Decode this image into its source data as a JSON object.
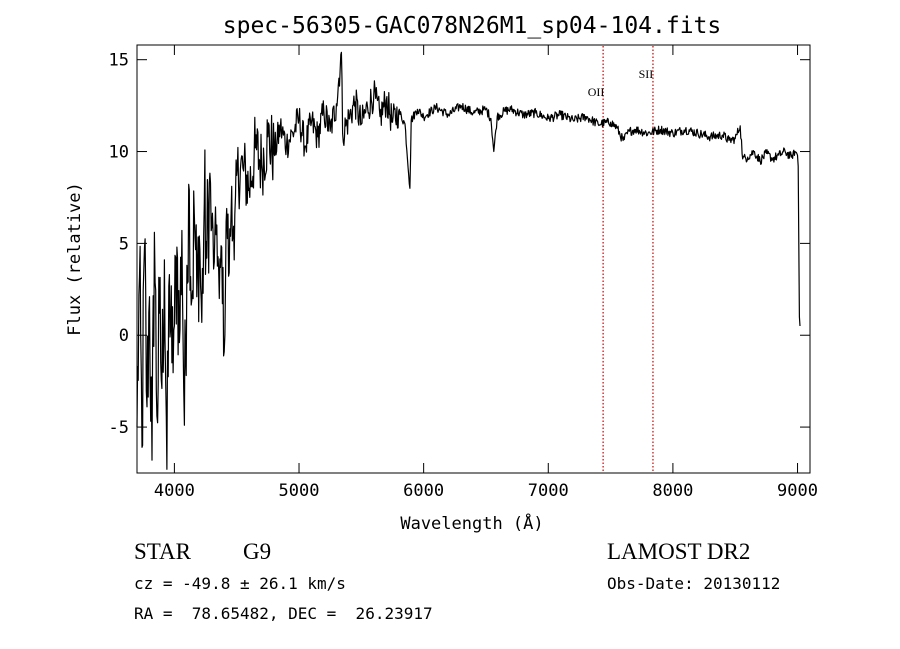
{
  "chart_data": {
    "type": "line",
    "title": "spec-56305-GAC078N26M1_sp04-104.fits",
    "xlabel": "Wavelength (Å)",
    "ylabel": "Flux (relative)",
    "xlim": [
      3700,
      9100
    ],
    "ylim": [
      -7.5,
      15.8
    ],
    "xticks": [
      4000,
      5000,
      6000,
      7000,
      8000,
      9000
    ],
    "yticks": [
      -5,
      0,
      5,
      10,
      15
    ],
    "grid": false,
    "series": [
      {
        "x": [
          3700,
          3720,
          3740,
          3760,
          3780,
          3800,
          3820,
          3840,
          3860,
          3880,
          3900,
          3920,
          3940,
          3960,
          3980,
          4000,
          4020,
          4040,
          4060,
          4080,
          4100,
          4120,
          4140,
          4160,
          4180,
          4200,
          4220,
          4240,
          4260,
          4280,
          4300,
          4320,
          4340,
          4360,
          4380,
          4400,
          4420,
          4440,
          4460,
          4480,
          4500,
          4550,
          4600,
          4650,
          4700,
          4750,
          4800,
          4850,
          4900,
          4950,
          5000,
          5050,
          5100,
          5150,
          5200,
          5250,
          5300,
          5340,
          5350,
          5400,
          5450,
          5500,
          5550,
          5600,
          5650,
          5700,
          5750,
          5800,
          5850,
          5890,
          5900,
          5950,
          6000,
          6100,
          6200,
          6300,
          6400,
          6500,
          6540,
          6563,
          6590,
          6650,
          6700,
          6800,
          6900,
          7000,
          7100,
          7200,
          7300,
          7400,
          7500,
          7550,
          7600,
          7650,
          7700,
          7800,
          7900,
          8000,
          8100,
          8200,
          8300,
          8400,
          8450,
          8500,
          8540,
          8560,
          8600,
          8650,
          8700,
          8750,
          8800,
          8850,
          8900,
          8950,
          8980,
          9000,
          9005,
          9010,
          9015,
          9020
        ],
        "values": [
          -5.0,
          3.2,
          -6.1,
          4.8,
          -3.9,
          2.1,
          -6.8,
          5.6,
          -4.4,
          1.2,
          -2.9,
          4.1,
          -7.3,
          3.3,
          -1.5,
          0.5,
          4.8,
          -0.4,
          5.7,
          -4.9,
          3.8,
          7.9,
          1.9,
          6.6,
          2.1,
          5.4,
          0.7,
          7.2,
          4.2,
          8.3,
          5.9,
          4.0,
          6.0,
          2.0,
          4.8,
          -0.9,
          6.9,
          3.4,
          8.1,
          4.1,
          8.7,
          9.1,
          8.0,
          10.2,
          9.3,
          10.8,
          9.9,
          11.3,
          10.4,
          11.0,
          11.8,
          10.3,
          11.6,
          10.8,
          12.2,
          11.1,
          12.6,
          15.4,
          11.0,
          11.8,
          12.7,
          11.5,
          12.4,
          13.1,
          11.9,
          12.8,
          11.6,
          12.2,
          11.5,
          8.0,
          11.7,
          12.3,
          11.9,
          12.4,
          12.0,
          12.5,
          12.1,
          12.3,
          11.8,
          10.0,
          11.9,
          12.2,
          12.3,
          12.0,
          12.1,
          11.8,
          12.0,
          11.7,
          11.9,
          11.5,
          11.6,
          11.3,
          10.6,
          11.1,
          11.2,
          11.0,
          11.2,
          11.0,
          11.2,
          11.0,
          10.8,
          10.9,
          10.6,
          10.7,
          11.4,
          9.6,
          9.7,
          10.0,
          9.5,
          9.9,
          9.6,
          9.8,
          10.0,
          9.7,
          10.0,
          9.8,
          9.2,
          5.0,
          1.0,
          0.5
        ]
      }
    ],
    "lines": [
      {
        "label": "OII",
        "x": 7440
      },
      {
        "label": "SII",
        "x": 7840
      }
    ],
    "line_color": "#cc0000"
  },
  "info": {
    "object_class": "STAR",
    "subclass": "G9",
    "survey": "LAMOST DR2",
    "velocity": "cz = -49.8 ± 26.1 km/s",
    "obs_date": "Obs-Date: 20130112",
    "coords": "RA =  78.65482, DEC =  26.23917"
  }
}
